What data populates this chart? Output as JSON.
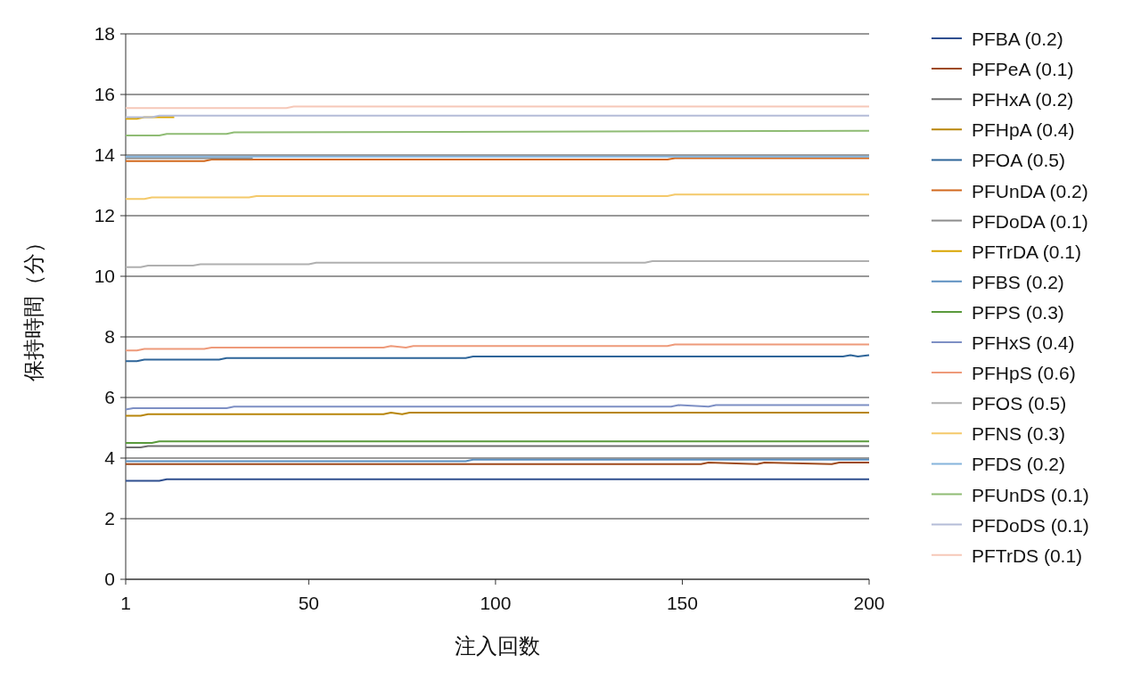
{
  "chart_data": {
    "type": "line",
    "xlabel": "注入回数",
    "ylabel": "保持時間（分）",
    "xlim": [
      1,
      200
    ],
    "ylim": [
      0,
      18
    ],
    "xticks": [
      1,
      50,
      100,
      150,
      200
    ],
    "yticks": [
      0,
      2,
      4,
      6,
      8,
      10,
      12,
      14,
      16,
      18
    ],
    "grid": "y",
    "legend": "right",
    "series": [
      {
        "name": "PFBA (0.2)",
        "color": "#2f4f8f",
        "x": [
          1,
          10,
          12,
          200
        ],
        "values": [
          3.25,
          3.25,
          3.3,
          3.3
        ]
      },
      {
        "name": "PFPeA (0.1)",
        "color": "#9e4a1c",
        "x": [
          1,
          155,
          157,
          170,
          172,
          190,
          192,
          200
        ],
        "values": [
          3.8,
          3.8,
          3.85,
          3.8,
          3.85,
          3.8,
          3.85,
          3.85
        ]
      },
      {
        "name": "PFHxA (0.2)",
        "color": "#6e6e6e",
        "x": [
          1,
          5,
          7,
          200
        ],
        "values": [
          4.35,
          4.35,
          4.4,
          4.4
        ]
      },
      {
        "name": "PFHpA (0.4)",
        "color": "#b8860b",
        "x": [
          1,
          5,
          7,
          70,
          72,
          75,
          77,
          200
        ],
        "values": [
          5.4,
          5.4,
          5.45,
          5.45,
          5.5,
          5.45,
          5.5,
          5.5
        ]
      },
      {
        "name": "PFOA (0.5)",
        "color": "#2e6599",
        "x": [
          1,
          4,
          6,
          26,
          28,
          92,
          94,
          193,
          195,
          197,
          200
        ],
        "values": [
          7.2,
          7.2,
          7.25,
          7.25,
          7.3,
          7.3,
          7.35,
          7.35,
          7.4,
          7.35,
          7.4
        ]
      },
      {
        "name": "PFUnDA (0.2)",
        "color": "#d2691e",
        "x": [
          1,
          22,
          24,
          146,
          148,
          200
        ],
        "values": [
          13.8,
          13.8,
          13.85,
          13.85,
          13.9,
          13.9
        ]
      },
      {
        "name": "PFDoDA (0.1)",
        "color": "#8c8c8c",
        "x": [
          1,
          35
        ],
        "values": [
          13.9,
          13.9
        ]
      },
      {
        "name": "PFTrDA (0.1)",
        "color": "#d9a400",
        "x": [
          1,
          4,
          6,
          14
        ],
        "values": [
          15.2,
          15.2,
          15.25,
          15.25
        ]
      },
      {
        "name": "PFBS (0.2)",
        "color": "#5b8fc0",
        "x": [
          1,
          92,
          94,
          200
        ],
        "values": [
          3.9,
          3.9,
          3.95,
          3.95
        ]
      },
      {
        "name": "PFPS (0.3)",
        "color": "#5a9a3c",
        "x": [
          1,
          8,
          10,
          200
        ],
        "values": [
          4.5,
          4.5,
          4.55,
          4.55
        ]
      },
      {
        "name": "PFHxS (0.4)",
        "color": "#7d8fc4",
        "x": [
          1,
          3,
          28,
          30,
          147,
          149,
          157,
          159,
          200
        ],
        "values": [
          5.6,
          5.65,
          5.65,
          5.7,
          5.7,
          5.75,
          5.7,
          5.75,
          5.75
        ]
      },
      {
        "name": "PFHpS (0.6)",
        "color": "#ee9a7a",
        "x": [
          1,
          4,
          6,
          22,
          24,
          70,
          72,
          76,
          78,
          146,
          148,
          200
        ],
        "values": [
          7.55,
          7.55,
          7.6,
          7.6,
          7.65,
          7.65,
          7.7,
          7.65,
          7.7,
          7.7,
          7.75,
          7.75
        ]
      },
      {
        "name": "PFOS (0.5)",
        "color": "#b0b0b0",
        "x": [
          1,
          5,
          7,
          19,
          21,
          40,
          50,
          52,
          131,
          140,
          142,
          200
        ],
        "values": [
          10.3,
          10.3,
          10.35,
          10.35,
          10.4,
          10.4,
          10.4,
          10.45,
          10.45,
          10.45,
          10.5,
          10.5
        ]
      },
      {
        "name": "PFNS (0.3)",
        "color": "#f4c96a",
        "x": [
          1,
          6,
          8,
          34,
          36,
          146,
          148,
          200
        ],
        "values": [
          12.55,
          12.55,
          12.6,
          12.6,
          12.65,
          12.65,
          12.7,
          12.7
        ]
      },
      {
        "name": "PFDS (0.2)",
        "color": "#86b4dc",
        "x": [
          1,
          200
        ],
        "values": [
          13.95,
          13.95
        ]
      },
      {
        "name": "PFUnDS (0.1)",
        "color": "#8fbc74",
        "x": [
          1,
          10,
          12,
          28,
          30,
          200
        ],
        "values": [
          14.65,
          14.65,
          14.7,
          14.7,
          14.75,
          14.8
        ]
      },
      {
        "name": "PFDoDS (0.1)",
        "color": "#b4bcd8",
        "x": [
          1,
          8,
          10,
          200
        ],
        "values": [
          15.25,
          15.25,
          15.3,
          15.3
        ]
      },
      {
        "name": "PFTrDS (0.1)",
        "color": "#f6c8b8",
        "x": [
          1,
          44,
          46,
          200
        ],
        "values": [
          15.55,
          15.55,
          15.6,
          15.6
        ]
      }
    ]
  }
}
